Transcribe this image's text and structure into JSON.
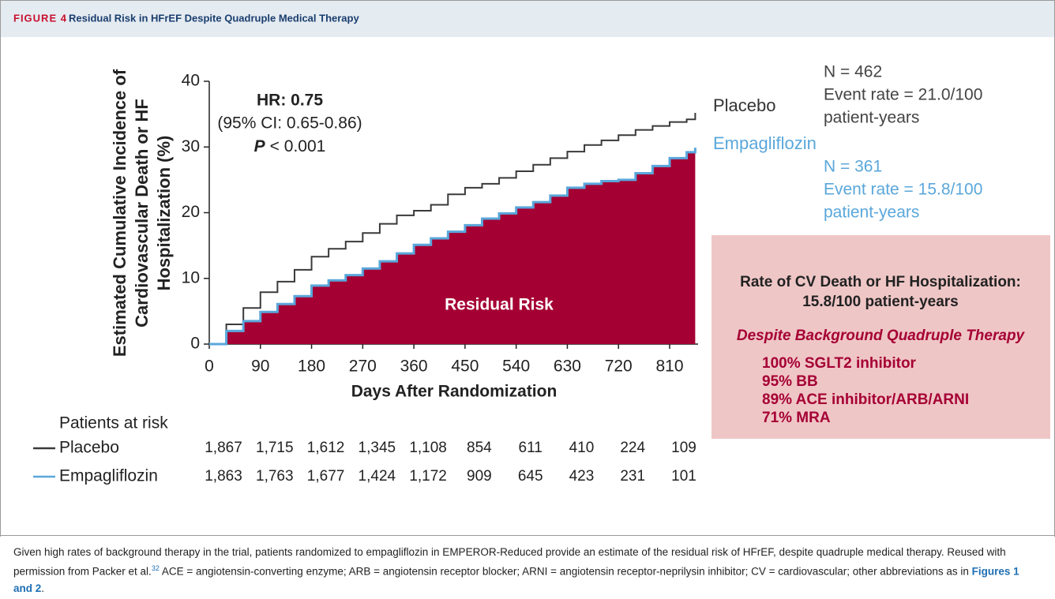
{
  "header": {
    "label": "FIGURE 4",
    "title": "Residual Risk in HFrEF Despite Quadruple Medical Therapy"
  },
  "chart_data": {
    "type": "line",
    "y_label": [
      "Estimated Cumulative Incidence of",
      "Cardiovascular Death or HF",
      "Hospitalization (%)"
    ],
    "x_label": "Days After Randomization",
    "annotations": [
      "HR: 0.75",
      "(95% CI: 0.65-0.86)"
    ],
    "p_value": {
      "symbol": "P",
      "text": "< 0.001"
    },
    "area_label": "Residual Risk",
    "x": [
      0,
      30,
      60,
      90,
      120,
      150,
      180,
      210,
      240,
      270,
      300,
      330,
      360,
      390,
      420,
      450,
      480,
      510,
      540,
      570,
      600,
      630,
      660,
      690,
      720,
      750,
      780,
      810,
      840,
      855
    ],
    "series": [
      {
        "name": "Placebo",
        "color": "#3a3a3a",
        "values": [
          0,
          3,
          5.5,
          7.9,
          9.5,
          11.3,
          13.3,
          14.5,
          15.6,
          16.9,
          18.3,
          19.6,
          20.3,
          21.2,
          22.8,
          23.8,
          24.4,
          25.3,
          26.3,
          27.3,
          28.3,
          29.3,
          30.3,
          31,
          31.8,
          32.6,
          33.2,
          33.8,
          34.2,
          35.2
        ],
        "stats": [
          "N = 462",
          "Event rate = 21.0/100",
          "patient-years"
        ]
      },
      {
        "name": "Empagliflozin",
        "color": "#5aa7db",
        "fill": "#a50034",
        "values": [
          0,
          2,
          3.5,
          4.9,
          6.1,
          7.3,
          8.9,
          9.7,
          10.5,
          11.5,
          12.6,
          13.8,
          15.1,
          16.1,
          17.1,
          18.1,
          19.1,
          19.9,
          20.8,
          21.6,
          22.6,
          23.8,
          24.4,
          24.8,
          25,
          26,
          27.1,
          28.3,
          29.2,
          29.9
        ],
        "stats": [
          "N = 361",
          "Event rate = 15.8/100",
          "patient-years"
        ]
      }
    ],
    "xlim": [
      0,
      860
    ],
    "xticks": [
      0,
      90,
      180,
      270,
      360,
      450,
      540,
      630,
      720,
      810
    ],
    "ylim": [
      0,
      40
    ],
    "yticks": [
      0,
      10,
      20,
      30,
      40
    ]
  },
  "box": {
    "title": [
      "Rate of CV Death or HF Hospitalization:",
      "15.8/100 patient-years"
    ],
    "subtitle": "Despite Background Quadruple Therapy",
    "items": [
      "100% SGLT2 inhibitor",
      "95% BB",
      "89% ACE inhibitor/ARB/ARNI",
      "71% MRA"
    ]
  },
  "at_risk": {
    "title": "Patients at risk",
    "rows": [
      [
        "1,867",
        "1,715",
        "1,612",
        "1,345",
        "1,108",
        "854",
        "611",
        "410",
        "224",
        "109"
      ],
      [
        "1,863",
        "1,763",
        "1,677",
        "1,424",
        "1,172",
        "909",
        "645",
        "423",
        "231",
        "101"
      ]
    ]
  },
  "caption": {
    "text1": "Given high rates of background therapy in the trial, patients randomized to empagliflozin in EMPEROR-Reduced provide an estimate of the residual risk of HFrEF, despite quadruple medical therapy. Reused with permission from Packer et al.",
    "ref": "32",
    "text2": " ACE = angiotensin-converting enzyme; ARB = angiotensin receptor blocker; ARNI = angiotensin receptor-neprilysin inhibitor; CV = cardiovascular; other abbreviations as in ",
    "link": "Figures 1 and 2",
    "end": "."
  }
}
